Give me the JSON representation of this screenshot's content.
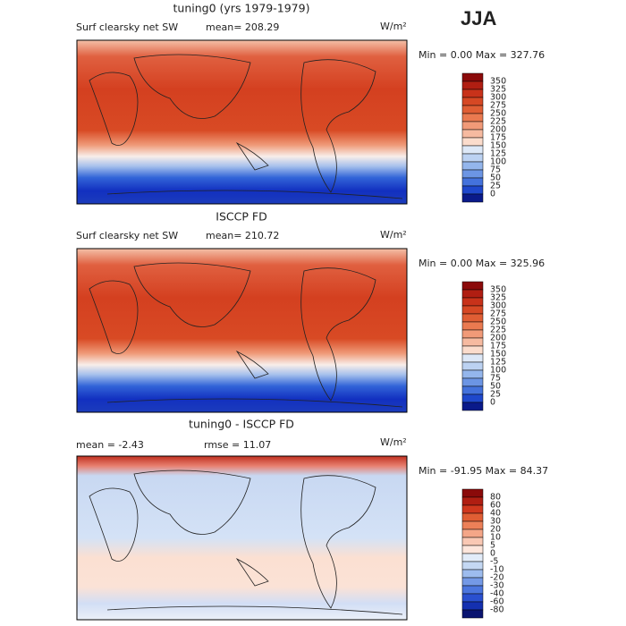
{
  "header": {
    "season": "JJA"
  },
  "panels": [
    {
      "title": "tuning0 (yrs 1979-1979)",
      "field": "Surf clearsky net SW",
      "mean": "mean= 208.29",
      "units": "W/m²",
      "range": "Min =   0.00 Max = 327.76",
      "colorbar": {
        "labels": [
          "350",
          "325",
          "300",
          "275",
          "250",
          "225",
          "200",
          "175",
          "150",
          "125",
          "100",
          "75",
          "50",
          "25",
          "0"
        ],
        "colors": [
          "#8b0a0a",
          "#b01e12",
          "#c8321a",
          "#d64824",
          "#e05e34",
          "#ea7a50",
          "#f19a78",
          "#f6baa0",
          "#fbdccc",
          "#dde8f7",
          "#bcd2f2",
          "#94b6ec",
          "#6c95e4",
          "#4472dc",
          "#1f48cc",
          "#0a1a8a"
        ]
      }
    },
    {
      "title": "ISCCP FD",
      "field": "Surf clearsky net SW",
      "mean": "mean= 210.72",
      "units": "W/m²",
      "range": "Min =   0.00 Max = 325.96",
      "colorbar": {
        "labels": [
          "350",
          "325",
          "300",
          "275",
          "250",
          "225",
          "200",
          "175",
          "150",
          "125",
          "100",
          "75",
          "50",
          "25",
          "0"
        ],
        "colors": [
          "#8b0a0a",
          "#b01e12",
          "#c8321a",
          "#d64824",
          "#e05e34",
          "#ea7a50",
          "#f19a78",
          "#f6baa0",
          "#fbdccc",
          "#dde8f7",
          "#bcd2f2",
          "#94b6ec",
          "#6c95e4",
          "#4472dc",
          "#1f48cc",
          "#0a1a8a"
        ]
      }
    },
    {
      "title": "tuning0 - ISCCP FD",
      "mean": "mean =   -2.43",
      "rmse": "rmse =   11.07",
      "units": "W/m²",
      "range": "Min = -91.95 Max =  84.37",
      "colorbar": {
        "labels": [
          "80",
          "60",
          "40",
          "30",
          "20",
          "10",
          "5",
          "0",
          "-5",
          "-10",
          "-20",
          "-30",
          "-40",
          "-60",
          "-80"
        ],
        "colors": [
          "#8b0a0a",
          "#b01e12",
          "#d0381e",
          "#e05e34",
          "#ec8058",
          "#f4a688",
          "#f9c8b4",
          "#fde6dc",
          "#e2ecf9",
          "#c4d8f3",
          "#9dbcee",
          "#7499e6",
          "#4c76de",
          "#2a50d0",
          "#1430b0",
          "#0a1470"
        ]
      }
    }
  ]
}
